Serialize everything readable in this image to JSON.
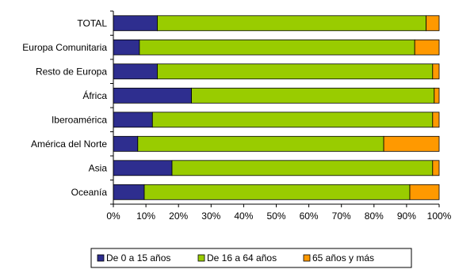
{
  "chart_data": {
    "type": "bar",
    "orientation": "horizontal",
    "stacked": "percent",
    "categories": [
      "TOTAL",
      "Europa Comunitaria",
      "Resto de Europa",
      "África",
      "Iberoamérica",
      "América del Norte",
      "Asia",
      "Oceanía"
    ],
    "series": [
      {
        "name": "De 0 a 15 años",
        "color": "#2e2e8f",
        "values": [
          13.5,
          8.0,
          13.5,
          24.0,
          12.0,
          7.5,
          18.0,
          9.5
        ]
      },
      {
        "name": "De 16 a 64 años",
        "color": "#99cc00",
        "values": [
          82.5,
          84.5,
          84.5,
          74.5,
          86.0,
          75.5,
          80.0,
          81.5
        ]
      },
      {
        "name": "65 años y más",
        "color": "#ff9900",
        "values": [
          4.0,
          7.5,
          2.0,
          1.5,
          2.0,
          17.0,
          2.0,
          9.0
        ]
      }
    ],
    "x_ticks": [
      "0%",
      "10%",
      "20%",
      "30%",
      "40%",
      "50%",
      "60%",
      "70%",
      "80%",
      "90%",
      "100%"
    ],
    "xlim": [
      0,
      100
    ],
    "grid": false,
    "legend_position": "bottom"
  }
}
